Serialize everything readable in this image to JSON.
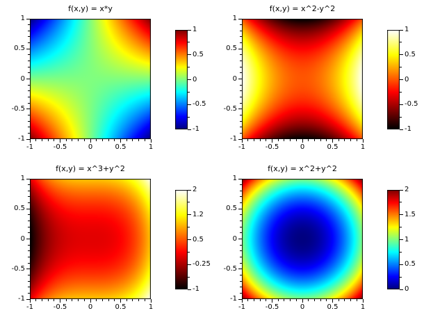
{
  "figure": {
    "background": "#ffffff",
    "text_color": "#000000",
    "layout": "2x2 grid of function heatmaps with individual colorbars"
  },
  "chart_data": [
    {
      "type": "heatmap",
      "title": "f(x,y) = x*y",
      "function": "x*y",
      "colormap": "jet",
      "x_range": [
        -1,
        1
      ],
      "y_range": [
        -1,
        1
      ],
      "z_range": [
        -1,
        1
      ],
      "x_tick_labels": [
        "-1",
        "-0.5",
        "0",
        "0.5",
        "1"
      ],
      "y_tick_labels": [
        "1",
        "0.5",
        "0",
        "-0.5",
        "-1"
      ],
      "colorbar_tick_labels": [
        "1",
        "0.5",
        "0",
        "-0.5",
        "-1"
      ],
      "minor_ticks_between_majors": {
        "axes": 4,
        "colorbar": 1
      },
      "grid": false,
      "legend": "colorbar right"
    },
    {
      "type": "heatmap",
      "title": "f(x,y) = x^2-y^2",
      "function": "x^2-y^2",
      "colormap": "hot",
      "x_range": [
        -1,
        1
      ],
      "y_range": [
        -1,
        1
      ],
      "z_range": [
        -1,
        1
      ],
      "x_tick_labels": [
        "-1",
        "-0.5",
        "0",
        "0.5",
        "1"
      ],
      "y_tick_labels": [
        "1",
        "0.5",
        "0",
        "-0.5",
        "-1"
      ],
      "colorbar_tick_labels": [
        "1",
        "0.5",
        "0",
        "-0.5",
        "-1"
      ],
      "minor_ticks_between_majors": {
        "axes": 4,
        "colorbar": 1
      },
      "grid": false,
      "legend": "colorbar right"
    },
    {
      "type": "heatmap",
      "title": "f(x,y) = x^3+y^2",
      "function": "x^3+y^2",
      "colormap": "hot",
      "x_range": [
        -1,
        1
      ],
      "y_range": [
        -1,
        1
      ],
      "z_range": [
        -1,
        2
      ],
      "x_tick_labels": [
        "-1",
        "-0.5",
        "0",
        "0.5",
        "1"
      ],
      "y_tick_labels": [
        "1",
        "0.5",
        "0",
        "-0.5",
        "-1"
      ],
      "colorbar_tick_labels": [
        "2",
        "1.2",
        "0.5",
        "-0.25",
        "-1"
      ],
      "minor_ticks_between_majors": {
        "axes": 4,
        "colorbar": 1
      },
      "grid": false,
      "legend": "colorbar right"
    },
    {
      "type": "heatmap",
      "title": "f(x,y) = x^2+y^2",
      "function": "x^2+y^2",
      "colormap": "jet",
      "x_range": [
        -1,
        1
      ],
      "y_range": [
        -1,
        1
      ],
      "z_range": [
        0,
        2
      ],
      "x_tick_labels": [
        "-1",
        "-0.5",
        "0",
        "0.5",
        "1"
      ],
      "y_tick_labels": [
        "1",
        "0.5",
        "0",
        "-0.5",
        "-1"
      ],
      "colorbar_tick_labels": [
        "2",
        "1.5",
        "1",
        "0.5",
        "0"
      ],
      "minor_ticks_between_majors": {
        "axes": 4,
        "colorbar": 1
      },
      "grid": false,
      "legend": "colorbar right"
    }
  ]
}
